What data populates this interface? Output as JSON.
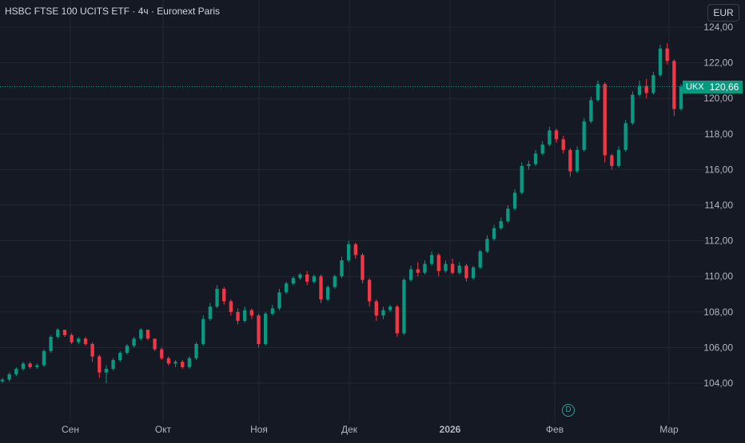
{
  "header": {
    "title": "HSBC FTSE 100 UCITS ETF · 4ч · Euronext Paris",
    "currency_button": "EUR"
  },
  "last_price_tag": {
    "symbol": "UKX",
    "value": "120,66",
    "price": 120.66,
    "color": "#089981"
  },
  "dividend_marker": {
    "label": "D",
    "x_month_index": 5.05
  },
  "colors": {
    "background": "#151924",
    "grid": "#232734",
    "up": "#089981",
    "down": "#f23645",
    "text": "#d1d4dc",
    "axis_text": "#b2b5be"
  },
  "chart_data": {
    "type": "candlestick",
    "title": "HSBC FTSE 100 UCITS ETF · 4ч · Euronext Paris",
    "xlabel": "",
    "ylabel": "",
    "ylim": [
      103,
      124.6
    ],
    "grid": true,
    "y_ticks": [
      104,
      106,
      108,
      110,
      112,
      114,
      116,
      118,
      120,
      122,
      124
    ],
    "y_tick_labels": [
      "104,00",
      "106,00",
      "108,00",
      "110,00",
      "112,00",
      "114,00",
      "116,00",
      "118,00",
      "120,00",
      "122,00",
      "124,00"
    ],
    "x_ticks": [
      {
        "label": "Сен",
        "pos": 0,
        "bold": false
      },
      {
        "label": "Окт",
        "pos": 1,
        "bold": false
      },
      {
        "label": "Ноя",
        "pos": 2,
        "bold": false
      },
      {
        "label": "Дек",
        "pos": 3,
        "bold": false
      },
      {
        "label": "2026",
        "pos": 4,
        "bold": true
      },
      {
        "label": "Фев",
        "pos": 5,
        "bold": false
      },
      {
        "label": "Мар",
        "pos": 6,
        "bold": false
      }
    ],
    "series_ohlc": [
      [
        104.1,
        104.3,
        104.0,
        104.2
      ],
      [
        104.2,
        104.6,
        104.1,
        104.5
      ],
      [
        104.5,
        104.9,
        104.4,
        104.8
      ],
      [
        104.8,
        105.2,
        104.7,
        105.1
      ],
      [
        105.1,
        105.2,
        104.8,
        104.9
      ],
      [
        104.9,
        105.1,
        104.8,
        105.0
      ],
      [
        105.0,
        105.9,
        104.9,
        105.8
      ],
      [
        105.8,
        106.7,
        105.7,
        106.6
      ],
      [
        106.6,
        107.1,
        106.5,
        107.0
      ],
      [
        107.0,
        107.0,
        106.6,
        106.7
      ],
      [
        106.7,
        106.8,
        106.2,
        106.3
      ],
      [
        106.3,
        106.6,
        106.2,
        106.5
      ],
      [
        106.5,
        106.6,
        106.1,
        106.2
      ],
      [
        106.2,
        106.3,
        105.2,
        105.5
      ],
      [
        105.5,
        105.6,
        104.3,
        104.6
      ],
      [
        104.6,
        105.0,
        104.0,
        104.8
      ],
      [
        104.8,
        105.4,
        104.7,
        105.3
      ],
      [
        105.3,
        105.8,
        105.2,
        105.7
      ],
      [
        105.7,
        106.2,
        105.6,
        106.1
      ],
      [
        106.1,
        106.6,
        106.0,
        106.5
      ],
      [
        106.5,
        107.1,
        106.4,
        107.0
      ],
      [
        107.0,
        107.0,
        106.4,
        106.5
      ],
      [
        106.5,
        106.5,
        105.8,
        105.9
      ],
      [
        105.9,
        106.0,
        105.3,
        105.4
      ],
      [
        105.4,
        105.5,
        105.0,
        105.1
      ],
      [
        105.1,
        105.3,
        104.9,
        105.2
      ],
      [
        105.2,
        105.3,
        104.8,
        104.9
      ],
      [
        104.9,
        105.5,
        104.8,
        105.4
      ],
      [
        105.4,
        106.3,
        105.3,
        106.2
      ],
      [
        106.2,
        107.8,
        106.1,
        107.6
      ],
      [
        107.6,
        108.5,
        107.5,
        108.3
      ],
      [
        108.3,
        109.5,
        108.2,
        109.3
      ],
      [
        109.3,
        109.4,
        108.4,
        108.6
      ],
      [
        108.6,
        108.7,
        107.8,
        108.0
      ],
      [
        108.0,
        108.2,
        107.3,
        107.5
      ],
      [
        107.5,
        108.3,
        107.4,
        108.1
      ],
      [
        108.1,
        108.2,
        107.6,
        107.8
      ],
      [
        107.8,
        107.9,
        106.0,
        106.2
      ],
      [
        106.2,
        108.0,
        106.1,
        107.9
      ],
      [
        107.9,
        108.4,
        107.8,
        108.2
      ],
      [
        108.2,
        109.3,
        108.1,
        109.1
      ],
      [
        109.1,
        109.7,
        109.0,
        109.6
      ],
      [
        109.6,
        110.0,
        109.5,
        109.9
      ],
      [
        109.9,
        110.2,
        109.8,
        110.1
      ],
      [
        110.1,
        110.3,
        109.5,
        109.7
      ],
      [
        109.7,
        110.1,
        109.6,
        110.0
      ],
      [
        110.0,
        110.1,
        108.5,
        108.7
      ],
      [
        108.7,
        109.5,
        108.6,
        109.4
      ],
      [
        109.4,
        110.1,
        109.3,
        110.0
      ],
      [
        110.0,
        111.1,
        109.9,
        110.9
      ],
      [
        110.9,
        112.0,
        110.8,
        111.8
      ],
      [
        111.8,
        111.9,
        111.0,
        111.2
      ],
      [
        111.2,
        111.3,
        109.6,
        109.8
      ],
      [
        109.8,
        109.9,
        108.3,
        108.6
      ],
      [
        108.6,
        108.7,
        107.5,
        107.8
      ],
      [
        107.8,
        108.3,
        107.6,
        108.1
      ],
      [
        108.1,
        108.4,
        108.0,
        108.3
      ],
      [
        108.3,
        108.4,
        106.6,
        106.8
      ],
      [
        106.8,
        109.9,
        106.7,
        109.8
      ],
      [
        109.8,
        110.6,
        109.7,
        110.4
      ],
      [
        110.4,
        110.8,
        110.0,
        110.2
      ],
      [
        110.2,
        110.9,
        110.1,
        110.7
      ],
      [
        110.7,
        111.4,
        110.6,
        111.2
      ],
      [
        111.2,
        111.3,
        110.0,
        110.3
      ],
      [
        110.3,
        110.9,
        110.2,
        110.7
      ],
      [
        110.7,
        111.0,
        110.1,
        110.2
      ],
      [
        110.2,
        110.8,
        110.1,
        110.6
      ],
      [
        110.6,
        110.7,
        109.7,
        109.9
      ],
      [
        109.9,
        110.6,
        109.8,
        110.5
      ],
      [
        110.5,
        111.5,
        110.4,
        111.4
      ],
      [
        111.4,
        112.3,
        111.3,
        112.1
      ],
      [
        112.1,
        112.9,
        112.0,
        112.7
      ],
      [
        112.7,
        113.3,
        112.6,
        113.1
      ],
      [
        113.1,
        114.0,
        113.0,
        113.8
      ],
      [
        113.8,
        114.9,
        113.7,
        114.7
      ],
      [
        114.7,
        116.4,
        114.6,
        116.2
      ],
      [
        116.2,
        116.5,
        116.0,
        116.3
      ],
      [
        116.3,
        117.1,
        116.2,
        116.9
      ],
      [
        116.9,
        117.6,
        116.8,
        117.4
      ],
      [
        117.4,
        118.4,
        117.3,
        118.2
      ],
      [
        118.2,
        118.3,
        117.5,
        117.7
      ],
      [
        117.7,
        117.9,
        116.9,
        117.1
      ],
      [
        117.1,
        117.2,
        115.6,
        115.9
      ],
      [
        115.9,
        117.3,
        115.8,
        117.1
      ],
      [
        117.1,
        118.9,
        117.0,
        118.7
      ],
      [
        118.7,
        120.1,
        118.6,
        119.9
      ],
      [
        119.9,
        121.0,
        119.8,
        120.8
      ],
      [
        120.8,
        120.9,
        116.4,
        116.8
      ],
      [
        116.8,
        116.9,
        116.0,
        116.2
      ],
      [
        116.2,
        117.3,
        116.1,
        117.1
      ],
      [
        117.1,
        118.8,
        117.0,
        118.6
      ],
      [
        118.6,
        120.4,
        118.5,
        120.2
      ],
      [
        120.2,
        121.0,
        120.1,
        120.7
      ],
      [
        120.7,
        121.1,
        120.0,
        120.3
      ],
      [
        120.3,
        121.5,
        120.2,
        121.3
      ],
      [
        121.3,
        123.0,
        121.2,
        122.8
      ],
      [
        122.8,
        123.1,
        121.9,
        122.1
      ],
      [
        122.1,
        122.2,
        119.0,
        119.4
      ],
      [
        119.4,
        120.8,
        119.3,
        120.66
      ]
    ]
  }
}
